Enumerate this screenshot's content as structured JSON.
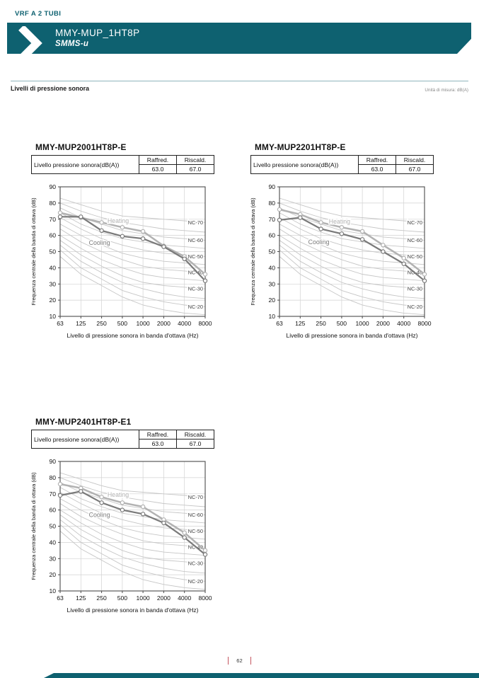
{
  "page": {
    "kicker": "VRF A 2 TUBI",
    "banner_title": "MMY-MUP_1HT8P",
    "banner_subtitle": "SMMS-u",
    "section_title": "Livelli di pressione sonora",
    "unit_note": "Unità di misura: dB(A)",
    "page_number": "62",
    "colors": {
      "teal": "#0e6170",
      "page_marker_red": "#c4545e",
      "grid": "#d2d2d2",
      "nc_curve": "#c6c6c6",
      "heating": "#b2b2b2",
      "cooling": "#7a7a7a"
    }
  },
  "labels": {
    "spec_row": "Livello pressione sonora(dB(A))",
    "cooling_col": "Raffred.",
    "heating_col": "Riscald."
  },
  "axis": {
    "x_label": "Livello di pressione sonora in banda d'ottava (Hz)",
    "y_label": "Frequenza centrale della banda di ottava (dB)",
    "x_ticks": [
      "63",
      "125",
      "250",
      "500",
      "1000",
      "2000",
      "4000",
      "8000"
    ],
    "y_ticks": [
      10,
      20,
      30,
      40,
      50,
      60,
      70,
      80,
      90
    ],
    "ylim": [
      10,
      90
    ],
    "grid": true
  },
  "nc_reference": {
    "curves": {
      "NC-15": [
        47,
        36,
        29,
        22,
        17,
        14,
        12,
        11
      ],
      "NC-20": [
        51,
        40,
        33,
        26,
        22,
        19,
        17,
        16
      ],
      "NC-25": [
        54,
        44,
        37,
        31,
        27,
        24,
        22,
        21
      ],
      "NC-30": [
        57,
        48,
        41,
        35,
        31,
        29,
        28,
        27
      ],
      "NC-35": [
        60,
        52,
        45,
        40,
        36,
        34,
        33,
        32
      ],
      "NC-40": [
        64,
        56,
        50,
        45,
        41,
        39,
        38,
        37
      ],
      "NC-45": [
        67,
        60,
        54,
        49,
        46,
        44,
        43,
        42
      ],
      "NC-50": [
        71,
        64,
        58,
        54,
        51,
        49,
        48,
        47
      ],
      "NC-55": [
        74,
        67,
        62,
        58,
        56,
        54,
        53,
        52
      ],
      "NC-60": [
        77,
        71,
        67,
        63,
        61,
        59,
        58,
        57
      ],
      "NC-65": [
        80,
        75,
        71,
        68,
        66,
        64,
        63,
        62
      ],
      "NC-70": [
        83,
        79,
        75,
        72,
        71,
        70,
        69,
        68
      ]
    },
    "labeled": [
      "NC-70",
      "NC-60",
      "NC-50",
      "NC-40",
      "NC-30",
      "NC-20"
    ]
  },
  "chart_data": [
    {
      "type": "line",
      "title": "MMY-MUP2001HT8P-E",
      "table": {
        "raffred_value": "63.0",
        "riscald_value": "67.0"
      },
      "x": [
        63,
        125,
        250,
        500,
        1000,
        2000,
        4000,
        8000
      ],
      "series": [
        {
          "name": "Heating",
          "values": [
            74,
            71,
            68,
            65,
            62.5,
            53.5,
            47,
            36
          ],
          "label_x": 2.8,
          "label_y": 69
        },
        {
          "name": "Cooling",
          "values": [
            71.5,
            71.5,
            63,
            59.5,
            58,
            53,
            45.5,
            32
          ],
          "label_x": 1.9,
          "label_y": 55.5
        }
      ]
    },
    {
      "type": "line",
      "title": "MMY-MUP2201HT8P-E",
      "table": {
        "raffred_value": "63.0",
        "riscald_value": "67.0"
      },
      "x": [
        63,
        125,
        250,
        500,
        1000,
        2000,
        4000,
        8000
      ],
      "series": [
        {
          "name": "Heating",
          "values": [
            76,
            73,
            68,
            65,
            62.5,
            54,
            46,
            36
          ],
          "label_x": 2.9,
          "label_y": 68.5
        },
        {
          "name": "Cooling",
          "values": [
            69.5,
            71,
            64,
            61,
            57.5,
            50,
            42.5,
            32
          ],
          "label_x": 1.9,
          "label_y": 55.8
        }
      ]
    },
    {
      "type": "line",
      "title": "MMY-MUP2401HT8P-E1",
      "table": {
        "raffred_value": "63.0",
        "riscald_value": "67.0"
      },
      "x": [
        63,
        125,
        250,
        500,
        1000,
        2000,
        4000,
        8000
      ],
      "series": [
        {
          "name": "Heating",
          "values": [
            76,
            73.5,
            68,
            64.5,
            62,
            54,
            46,
            35
          ],
          "label_x": 2.8,
          "label_y": 69.5
        },
        {
          "name": "Cooling",
          "values": [
            69,
            71.5,
            64.5,
            60,
            57.5,
            52,
            43,
            32.5
          ],
          "label_x": 1.9,
          "label_y": 57
        }
      ]
    }
  ]
}
